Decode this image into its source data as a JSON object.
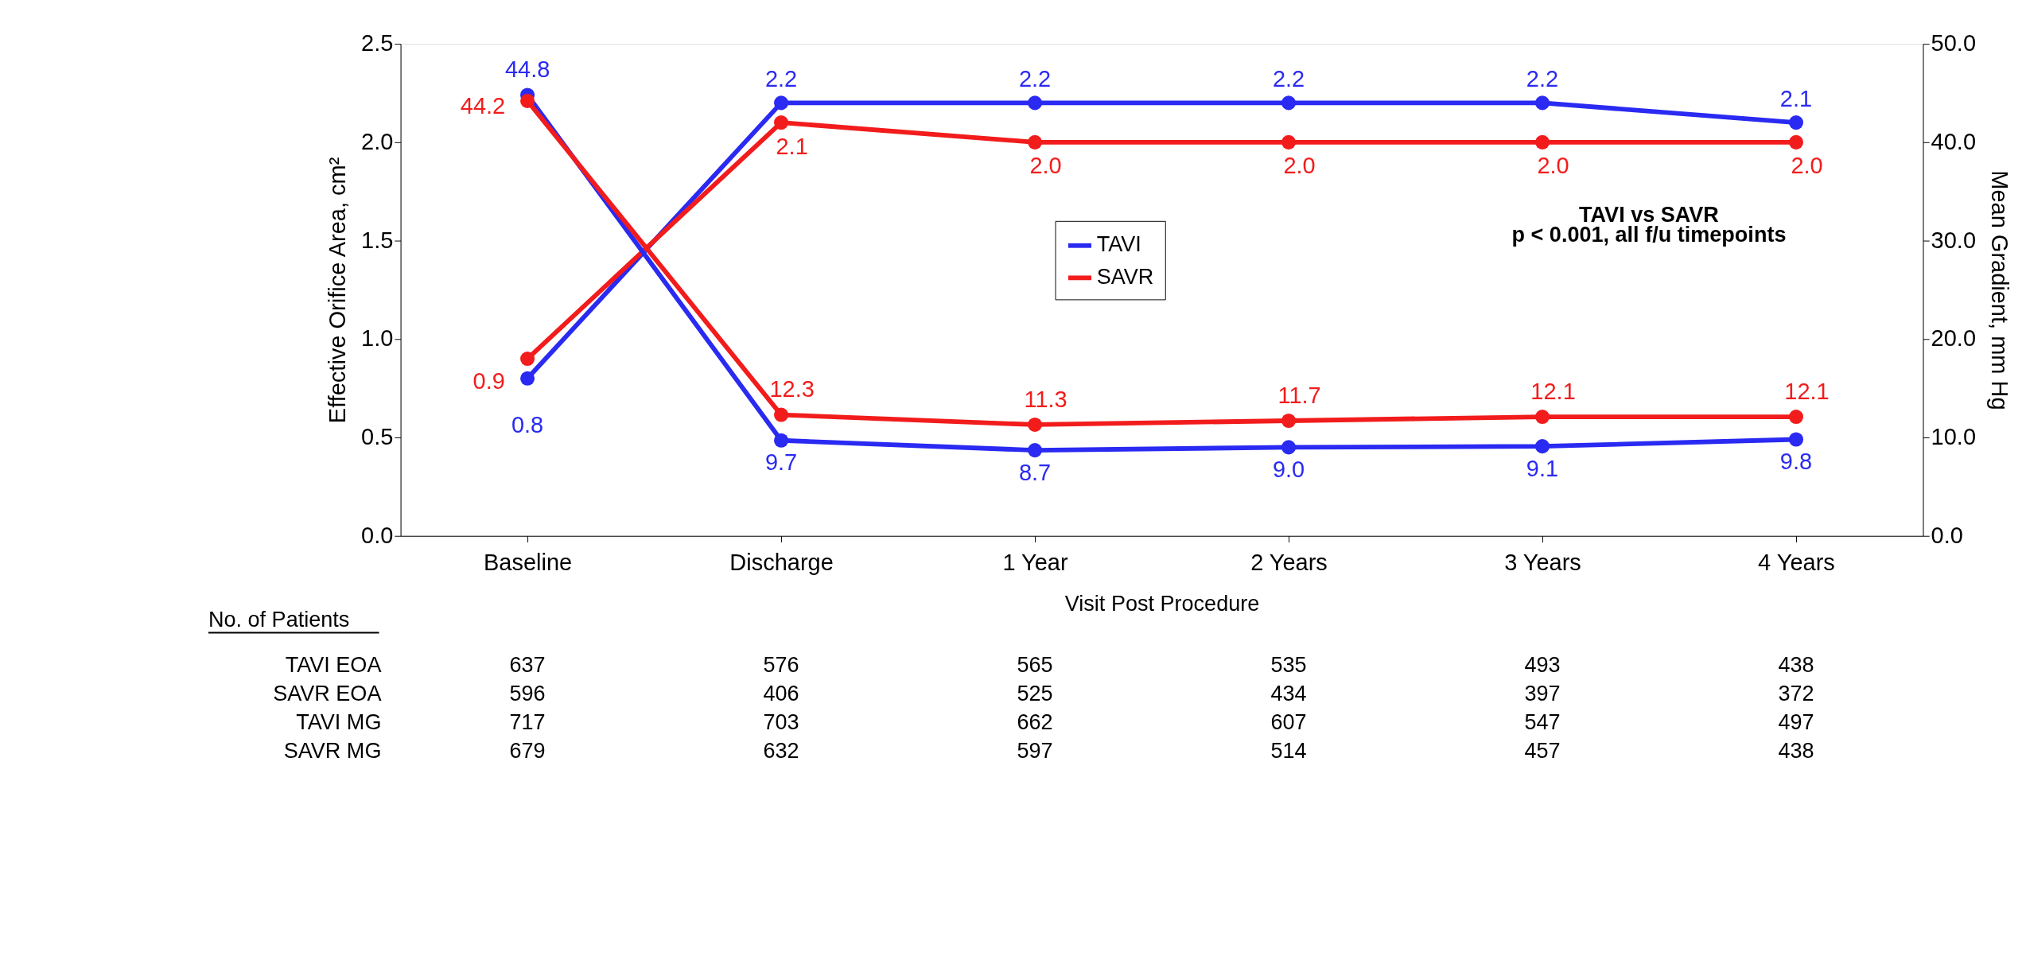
{
  "chart_data": {
    "type": "line",
    "categories": [
      "Baseline",
      "Discharge",
      "1 Year",
      "2 Years",
      "3 Years",
      "4 Years"
    ],
    "xlabel": "Visit Post Procedure",
    "ylabel": "Effective Orifice Area, cm²",
    "y2label": "Mean Gradient, mm Hg",
    "ylim": [
      0,
      2.5
    ],
    "yticks": [
      {
        "value": 0,
        "label": "0.0"
      },
      {
        "value": 0.5,
        "label": "0.5"
      },
      {
        "value": 1,
        "label": "1.0"
      },
      {
        "value": 1.5,
        "label": "1.5"
      },
      {
        "value": 2,
        "label": "2.0"
      },
      {
        "value": 2.5,
        "label": "2.5"
      }
    ],
    "y2lim": [
      0,
      50
    ],
    "y2ticks": [
      {
        "value": 0,
        "label": "0.0"
      },
      {
        "value": 10,
        "label": "10.0"
      },
      {
        "value": 20,
        "label": "20.0"
      },
      {
        "value": 30,
        "label": "30.0"
      },
      {
        "value": 40,
        "label": "40.0"
      },
      {
        "value": 50,
        "label": "50.0"
      }
    ],
    "series": [
      {
        "name": "TAVI",
        "color": "#2a2af2",
        "values": [
          0.8,
          2.2,
          2.2,
          2.2,
          2.2,
          2.1
        ],
        "value_labels": [
          "0.8",
          "2.2",
          "2.2",
          "2.2",
          "2.2",
          "2.1"
        ]
      },
      {
        "name": "SAVR",
        "color": "#f21c1c",
        "values": [
          0.9,
          2.1,
          2.0,
          2.0,
          2.0,
          2.0
        ],
        "value_labels": [
          "0.9",
          "2.1",
          "2.0",
          "2.0",
          "2.0",
          "2.0"
        ]
      },
      {
        "color": "#2a2af2",
        "axis": "y2",
        "values": [
          44.8,
          9.7,
          8.7,
          9.0,
          9.1,
          9.8
        ],
        "value_labels": [
          "44.8",
          "9.7",
          "8.7",
          "9.0",
          "9.1",
          "9.8"
        ]
      },
      {
        "color": "#f21c1c",
        "axis": "y2",
        "values": [
          44.2,
          12.3,
          11.3,
          11.7,
          12.1,
          12.1
        ],
        "value_labels": [
          "44.2",
          "12.3",
          "11.3",
          "11.7",
          "12.1",
          "12.1"
        ]
      }
    ],
    "marker": "circle",
    "grid": false,
    "legend": "center",
    "annotations": [
      "TAVI vs SAVR",
      "p < 0.001, all f/u timepoints",
      "No. of Patients",
      "TAVI EOA 637 576 565 535 493 438",
      "SAVR EOA 596 406 525 434 397 372",
      "TAVI MG 717 703 662 607 547 497",
      "SAVR MG 679 632 597 514 457 438"
    ]
  }
}
